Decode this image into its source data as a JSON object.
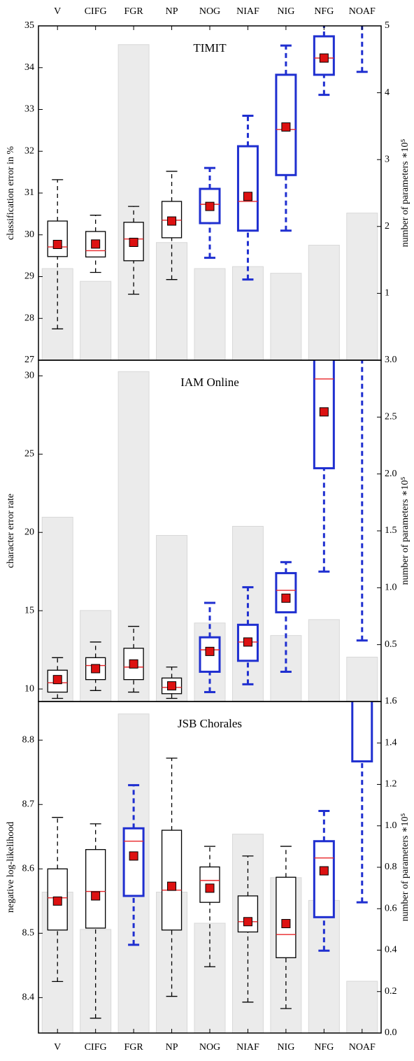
{
  "chart_data": [
    {
      "type": "box",
      "title": "TIMIT",
      "ylabel": "classification error in %",
      "y2label": "number of parameters ∗10⁵",
      "categories": [
        "V",
        "CIFG",
        "FGR",
        "NP",
        "NOG",
        "NIAF",
        "NIG",
        "NFG",
        "NOAF"
      ],
      "category_axis": "top",
      "ylim": [
        27,
        35
      ],
      "yticks": [
        27,
        28,
        29,
        30,
        31,
        32,
        33,
        34,
        35
      ],
      "y2lim": [
        0,
        5
      ],
      "y2ticks": [
        1,
        2,
        3,
        4,
        5
      ],
      "bars": {
        "axis": "y2",
        "color": "#ebebeb",
        "values": [
          1.37,
          1.18,
          4.72,
          1.76,
          1.37,
          1.4,
          1.3,
          1.72,
          2.2
        ]
      },
      "median_color": "#e8262a",
      "mean_color": "#dd1111",
      "boxes": [
        {
          "color": "#000000",
          "whislo": 27.75,
          "q1": 29.48,
          "med": 29.71,
          "q3": 30.33,
          "whishi": 31.32,
          "mean": 29.77
        },
        {
          "color": "#000000",
          "whislo": 29.1,
          "q1": 29.47,
          "med": 29.62,
          "q3": 30.08,
          "whishi": 30.47,
          "mean": 29.78
        },
        {
          "color": "#000000",
          "whislo": 28.58,
          "q1": 29.38,
          "med": 29.9,
          "q3": 30.3,
          "whishi": 30.68,
          "mean": 29.82
        },
        {
          "color": "#000000",
          "whislo": 28.93,
          "q1": 29.93,
          "med": 30.35,
          "q3": 30.8,
          "whishi": 31.52,
          "mean": 30.33
        },
        {
          "color": "#1f2fd0",
          "whislo": 29.45,
          "q1": 30.28,
          "med": 30.73,
          "q3": 31.1,
          "whishi": 31.6,
          "mean": 30.68
        },
        {
          "color": "#1f2fd0",
          "whislo": 28.93,
          "q1": 30.1,
          "med": 30.8,
          "q3": 32.12,
          "whishi": 32.85,
          "mean": 30.92
        },
        {
          "color": "#1f2fd0",
          "whislo": 30.1,
          "q1": 31.43,
          "med": 32.52,
          "q3": 33.83,
          "whishi": 34.53,
          "mean": 32.58
        },
        {
          "color": "#1f2fd0",
          "whislo": 33.35,
          "q1": 33.83,
          "med": 34.23,
          "q3": 34.75,
          "whishi": null,
          "mean": 34.23
        },
        {
          "color": "#1f2fd0",
          "whislo": 33.9,
          "q1": null,
          "med": null,
          "q3": null,
          "whishi": null,
          "mean": null
        }
      ]
    },
    {
      "type": "box",
      "title": "IAM Online",
      "ylabel": "character error rate",
      "y2label": "number of parameters ∗10⁵",
      "ylim": [
        9.2,
        31
      ],
      "yticks": [
        10,
        15,
        20,
        25,
        30
      ],
      "y2lim": [
        0,
        3
      ],
      "y2ticks": [
        0.5,
        {
          "value": 1,
          "label": "1.0"
        },
        1.5,
        {
          "value": 2,
          "label": "2.0"
        },
        2.5,
        {
          "value": 3,
          "label": "3.0"
        }
      ],
      "bars": {
        "axis": "y2",
        "color": "#ebebeb",
        "values": [
          1.62,
          0.8,
          2.9,
          1.46,
          0.69,
          1.54,
          0.58,
          0.72,
          0.39
        ]
      },
      "median_color": "#e8262a",
      "mean_color": "#dd1111",
      "boxes": [
        {
          "color": "#000000",
          "whislo": 9.4,
          "q1": 9.8,
          "med": 10.4,
          "q3": 11.2,
          "whishi": 12.0,
          "mean": 10.6
        },
        {
          "color": "#000000",
          "whislo": 9.9,
          "q1": 10.6,
          "med": 11.5,
          "q3": 12.0,
          "whishi": 13.0,
          "mean": 11.3
        },
        {
          "color": "#000000",
          "whislo": 9.8,
          "q1": 10.6,
          "med": 11.4,
          "q3": 12.6,
          "whishi": 14.0,
          "mean": 11.6
        },
        {
          "color": "#000000",
          "whislo": 9.4,
          "q1": 9.7,
          "med": 10.1,
          "q3": 10.7,
          "whishi": 11.4,
          "mean": 10.2
        },
        {
          "color": "#1f2fd0",
          "whislo": 9.8,
          "q1": 11.1,
          "med": 12.5,
          "q3": 13.3,
          "whishi": 15.5,
          "mean": 12.4
        },
        {
          "color": "#1f2fd0",
          "whislo": 10.3,
          "q1": 11.8,
          "med": 13.0,
          "q3": 14.1,
          "whishi": 16.5,
          "mean": 13.0
        },
        {
          "color": "#1f2fd0",
          "whislo": 11.1,
          "q1": 14.9,
          "med": 16.3,
          "q3": 17.4,
          "whishi": 18.1,
          "mean": 15.8
        },
        {
          "color": "#1f2fd0",
          "whislo": 17.5,
          "q1": 24.1,
          "med": 29.8,
          "q3": null,
          "whishi": null,
          "mean": 27.7
        },
        {
          "color": "#1f2fd0",
          "whislo": 13.1,
          "q1": null,
          "med": null,
          "q3": null,
          "whishi": null,
          "mean": null
        }
      ]
    },
    {
      "type": "box",
      "title": "JSB Chorales",
      "ylabel": "negative log-likelihood",
      "y2label": "number of parameters ∗10⁵",
      "categories": [
        "V",
        "CIFG",
        "FGR",
        "NP",
        "NOG",
        "NIAF",
        "NIG",
        "NFG",
        "NOAF"
      ],
      "category_axis": "bottom",
      "ylim": [
        8.345,
        8.86
      ],
      "yticks": [
        8.4,
        8.5,
        8.6,
        8.7,
        8.8
      ],
      "y2lim": [
        0,
        1.6
      ],
      "y2ticks": [
        {
          "value": 0,
          "label": "0.0"
        },
        0.2,
        0.4,
        0.6,
        0.8,
        {
          "value": 1,
          "label": "1.0"
        },
        1.2,
        1.4,
        1.6
      ],
      "bars": {
        "axis": "y2",
        "color": "#ebebeb",
        "values": [
          0.68,
          0.5,
          1.54,
          0.68,
          0.53,
          0.96,
          0.75,
          0.64,
          0.25
        ]
      },
      "median_color": "#e8262a",
      "mean_color": "#dd1111",
      "boxes": [
        {
          "color": "#000000",
          "whislo": 8.425,
          "q1": 8.505,
          "med": 8.555,
          "q3": 8.6,
          "whishi": 8.68,
          "mean": 8.55
        },
        {
          "color": "#000000",
          "whislo": 8.368,
          "q1": 8.508,
          "med": 8.565,
          "q3": 8.63,
          "whishi": 8.67,
          "mean": 8.558
        },
        {
          "color": "#1f2fd0",
          "whislo": 8.482,
          "q1": 8.558,
          "med": 8.643,
          "q3": 8.663,
          "whishi": 8.73,
          "mean": 8.62
        },
        {
          "color": "#000000",
          "whislo": 8.402,
          "q1": 8.505,
          "med": 8.567,
          "q3": 8.66,
          "whishi": 8.772,
          "mean": 8.573
        },
        {
          "color": "#000000",
          "whislo": 8.448,
          "q1": 8.548,
          "med": 8.582,
          "q3": 8.603,
          "whishi": 8.635,
          "mean": 8.57
        },
        {
          "color": "#000000",
          "whislo": 8.393,
          "q1": 8.502,
          "med": 8.518,
          "q3": 8.558,
          "whishi": 8.62,
          "mean": 8.518
        },
        {
          "color": "#000000",
          "whislo": 8.383,
          "q1": 8.462,
          "med": 8.498,
          "q3": 8.587,
          "whishi": 8.635,
          "mean": 8.515
        },
        {
          "color": "#1f2fd0",
          "whislo": 8.473,
          "q1": 8.525,
          "med": 8.617,
          "q3": 8.643,
          "whishi": 8.69,
          "mean": 8.597
        },
        {
          "color": "#1f2fd0",
          "whislo": 8.548,
          "q1": 8.767,
          "med": null,
          "q3": null,
          "whishi": null,
          "mean": null
        }
      ]
    }
  ]
}
